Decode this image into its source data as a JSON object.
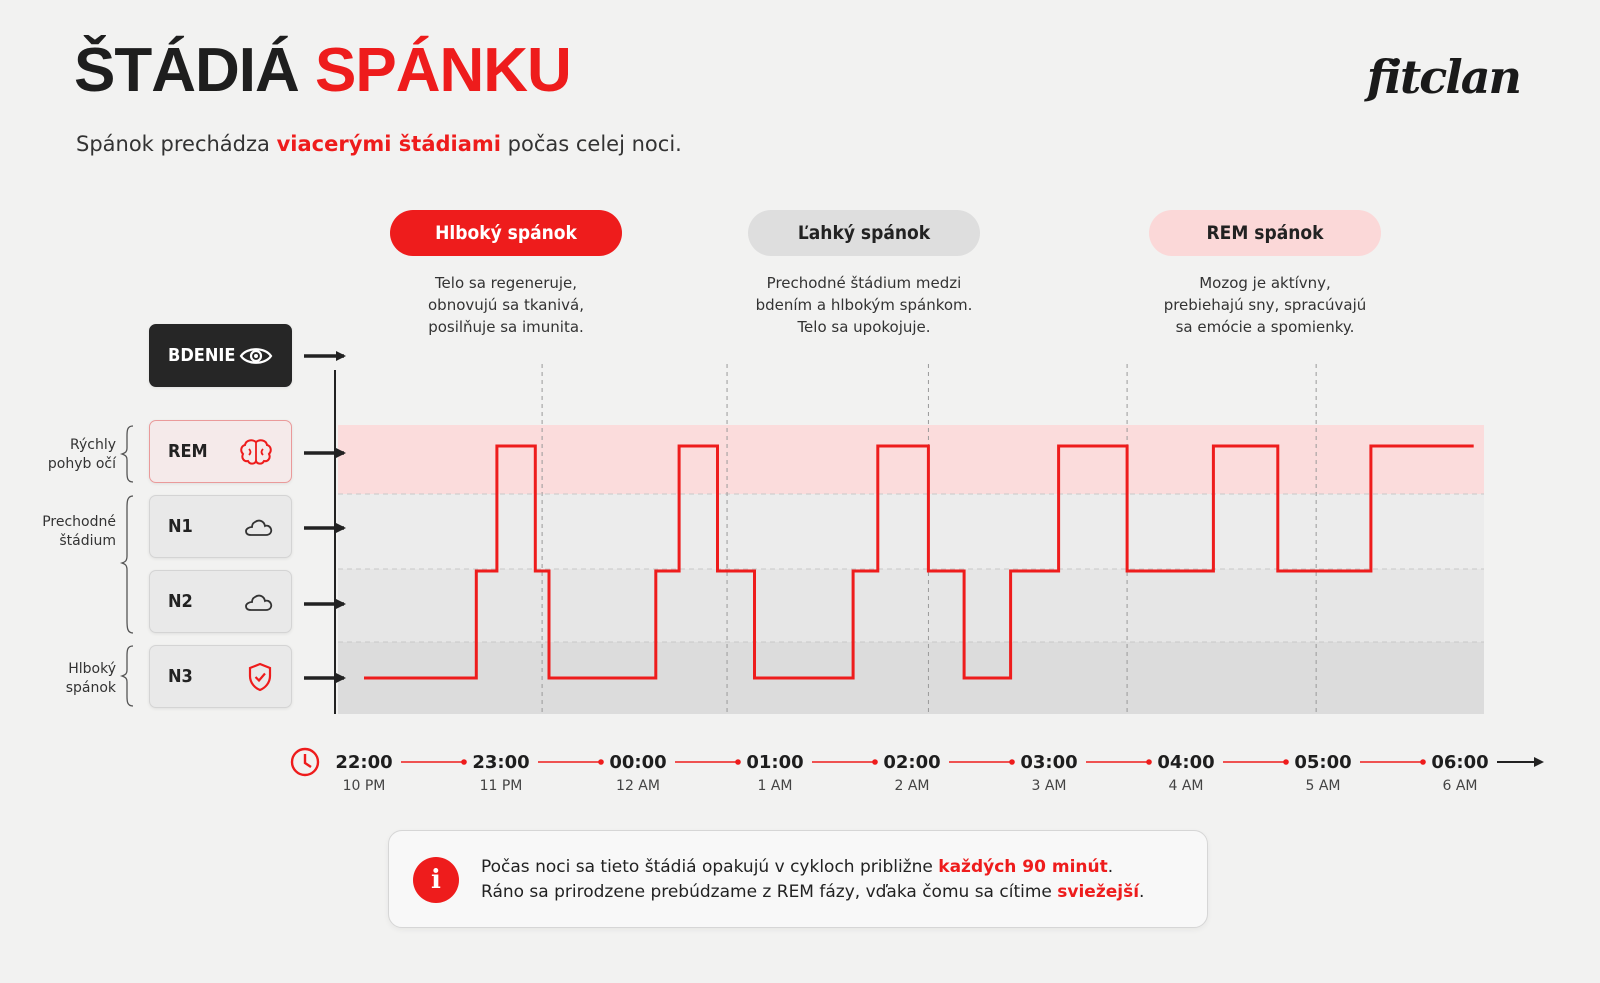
{
  "header": {
    "title_part1": "ŠTÁDIÁ",
    "title_part2": "SPÁNKU",
    "subtitle_pre": "Spánok prechádza",
    "subtitle_highlight": "viacerými štádiami",
    "subtitle_post": "počas celej noci.",
    "logo": "fitclan"
  },
  "phases": [
    {
      "label": "Hlboký spánok",
      "description": [
        "Telo sa regeneruje,",
        "obnovujú sa tkanivá,",
        "posilňuje sa imunita."
      ]
    },
    {
      "label": "Ľahký spánok",
      "description": [
        "Prechodné štádium medzi",
        "bdením a hlbokým spánkom.",
        "Telo sa upokojuje."
      ]
    },
    {
      "label": "REM spánok",
      "description": [
        "Mozog je aktívny,",
        "prebiehajú sny, spracúvajú",
        "sa emócie a spomienky."
      ]
    }
  ],
  "stages": [
    {
      "label": "BDENIE",
      "icon": "eye-icon"
    },
    {
      "label": "REM",
      "icon": "brain-icon"
    },
    {
      "label": "N1",
      "icon": "cloud-icon"
    },
    {
      "label": "N2",
      "icon": "cloud-icon"
    },
    {
      "label": "N3",
      "icon": "shield-icon"
    }
  ],
  "group_labels": {
    "rem": [
      "Rýchly",
      "pohyb očí"
    ],
    "light": [
      "Prechodné",
      "štádium"
    ],
    "deep": [
      "Hlboký",
      "spánok"
    ]
  },
  "chart_data": {
    "type": "line",
    "title": "",
    "y_categories": [
      "N3",
      "N2",
      "N1",
      "REM",
      "BDENIE"
    ],
    "x_ticks": [
      {
        "time": "22:00",
        "ampm": "10 PM"
      },
      {
        "time": "23:00",
        "ampm": "11 PM"
      },
      {
        "time": "00:00",
        "ampm": "12 AM"
      },
      {
        "time": "01:00",
        "ampm": "1 AM"
      },
      {
        "time": "02:00",
        "ampm": "2 AM"
      },
      {
        "time": "03:00",
        "ampm": "3 AM"
      },
      {
        "time": "04:00",
        "ampm": "4 AM"
      },
      {
        "time": "05:00",
        "ampm": "5 AM"
      },
      {
        "time": "06:00",
        "ampm": "6 AM"
      }
    ],
    "x_unit": "hours since 22:00",
    "series": [
      {
        "color": "#ee1c1c",
        "points": [
          [
            0.0,
            "N3"
          ],
          [
            0.82,
            "N3"
          ],
          [
            0.82,
            "N2"
          ],
          [
            0.97,
            "N2"
          ],
          [
            0.97,
            "REM"
          ],
          [
            1.25,
            "REM"
          ],
          [
            1.25,
            "N2"
          ],
          [
            1.35,
            "N2"
          ],
          [
            1.35,
            "N3"
          ],
          [
            2.13,
            "N3"
          ],
          [
            2.13,
            "N2"
          ],
          [
            2.3,
            "N2"
          ],
          [
            2.3,
            "REM"
          ],
          [
            2.58,
            "REM"
          ],
          [
            2.58,
            "N2"
          ],
          [
            2.85,
            "N2"
          ],
          [
            2.85,
            "N3"
          ],
          [
            3.57,
            "N3"
          ],
          [
            3.57,
            "N2"
          ],
          [
            3.75,
            "N2"
          ],
          [
            3.75,
            "REM"
          ],
          [
            4.12,
            "REM"
          ],
          [
            4.12,
            "N2"
          ],
          [
            4.38,
            "N2"
          ],
          [
            4.38,
            "N3"
          ],
          [
            4.72,
            "N3"
          ],
          [
            4.72,
            "N2"
          ],
          [
            5.07,
            "N2"
          ],
          [
            5.07,
            "REM"
          ],
          [
            5.57,
            "REM"
          ],
          [
            5.57,
            "N2"
          ],
          [
            6.2,
            "N2"
          ],
          [
            6.2,
            "REM"
          ],
          [
            6.67,
            "REM"
          ],
          [
            6.67,
            "N2"
          ],
          [
            7.35,
            "N2"
          ],
          [
            7.35,
            "REM"
          ],
          [
            8.1,
            "REM"
          ]
        ]
      }
    ],
    "phase_dividers": [
      1.3,
      2.65,
      4.12,
      5.57,
      6.95
    ],
    "bands": {
      "REM": "#fbdcdc",
      "N1": "#ececec",
      "N2": "#e6e6e6",
      "N3": "#dcdcdc"
    }
  },
  "info": {
    "line1_pre": "Počas noci sa tieto štádiá opakujú v cykloch približne",
    "line1_highlight": "každých 90 minút",
    "line1_post": ".",
    "line2_pre": "Ráno sa prirodzene prebúdzame z REM fázy, vďaka čomu sa cítime",
    "line2_highlight": "sviežejší",
    "line2_post": "."
  }
}
